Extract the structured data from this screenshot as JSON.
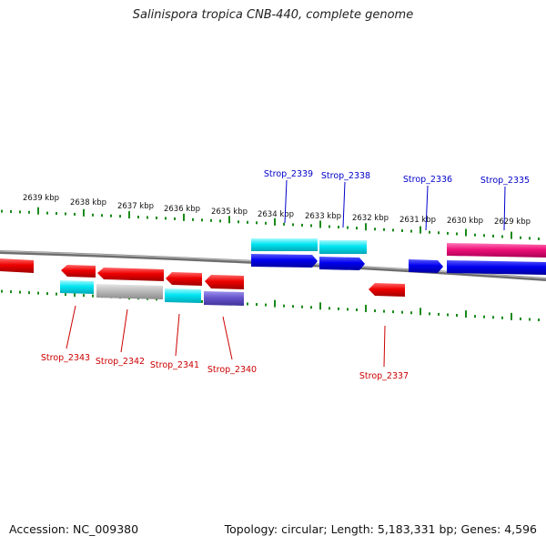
{
  "title": "Salinispora tropica CNB-440, complete genome",
  "footer": {
    "accession": "Accession: NC_009380",
    "summary": "Topology: circular; Length: 5,183,331 bp; Genes: 4,596"
  },
  "scale_labels": [
    "2639 kbp",
    "2638 kbp",
    "2637 kbp",
    "2636 kbp",
    "2635 kbp",
    "2634 kbp",
    "2633 kbp",
    "2632 kbp",
    "2631 kbp",
    "2630 kbp",
    "2629 kbp"
  ],
  "genes_top": [
    {
      "label": "Strop_2339"
    },
    {
      "label": "Strop_2338"
    },
    {
      "label": "Strop_2336"
    },
    {
      "label": "Strop_2335"
    }
  ],
  "genes_bottom": [
    {
      "label": "Strop_2343"
    },
    {
      "label": "Strop_2342"
    },
    {
      "label": "Strop_2341"
    },
    {
      "label": "Strop_2340"
    },
    {
      "label": "Strop_2337"
    }
  ],
  "colors": {
    "forward_label": "#0000cc",
    "reverse_label": "#cc0000",
    "tick": "#1a8a1a",
    "backbone": "#808080",
    "red": "#ee0000",
    "blue": "#0000ee",
    "cyan": "#00e5f2",
    "magenta": "#ee1177",
    "gray": "#bbbbbb",
    "purple": "#6655cc"
  }
}
